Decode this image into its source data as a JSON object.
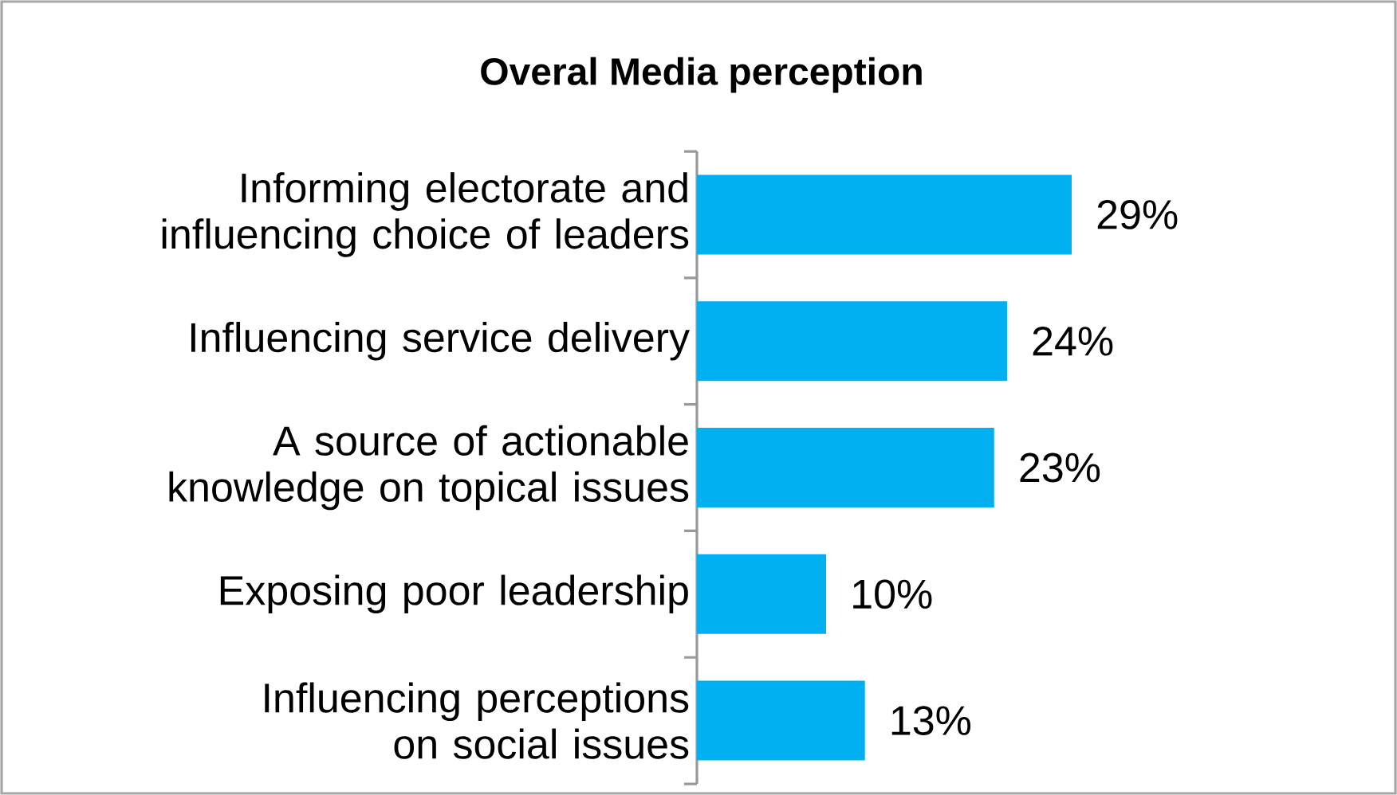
{
  "chart_data": {
    "type": "bar",
    "orientation": "horizontal",
    "title": "Overal Media perception",
    "categories": [
      "Informing electorate and influencing choice of leaders",
      "Influencing service delivery",
      "A source of actionable knowledge on topical issues",
      "Exposing poor leadership",
      "Influencing perceptions on social issues"
    ],
    "values": [
      29,
      24,
      23,
      10,
      13
    ],
    "value_labels": [
      "29%",
      "24%",
      "23%",
      "10%",
      "13%"
    ],
    "color": "#00b0f0"
  }
}
